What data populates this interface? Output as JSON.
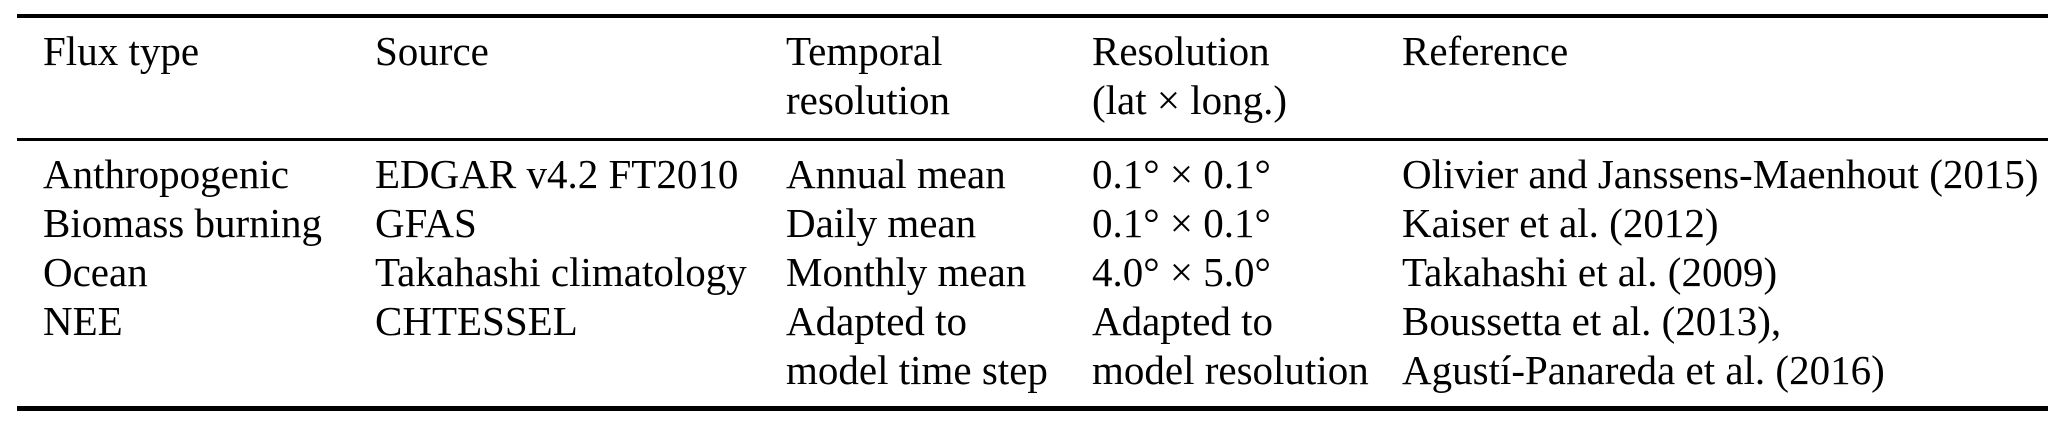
{
  "table": {
    "title": "flux-inventory-table",
    "colors": {
      "text": "#000000",
      "background": "#ffffff",
      "rule": "#000000"
    },
    "columns": [
      "Flux type",
      "Source",
      "Temporal\nresolution",
      "Resolution\n(lat × long.)",
      "Reference"
    ],
    "rows": [
      {
        "flux_type": "Anthropogenic",
        "source": "EDGAR v4.2 FT2010",
        "temporal_resolution": "Annual mean",
        "resolution": "0.1° × 0.1°",
        "reference": "Olivier and Janssens-Maenhout (2015)"
      },
      {
        "flux_type": "Biomass burning",
        "source": "GFAS",
        "temporal_resolution": "Daily mean",
        "resolution": "0.1° × 0.1°",
        "reference": "Kaiser et al. (2012)"
      },
      {
        "flux_type": "Ocean",
        "source": "Takahashi climatology",
        "temporal_resolution": "Monthly mean",
        "resolution": "4.0° × 5.0°",
        "reference": "Takahashi et al. (2009)"
      },
      {
        "flux_type": "NEE",
        "source": "CHTESSEL",
        "temporal_resolution": "Adapted to\nmodel time step",
        "resolution": "Adapted to\nmodel resolution",
        "reference": "Boussetta et al. (2013),\nAgustí-Panareda et al. (2016)"
      }
    ]
  }
}
